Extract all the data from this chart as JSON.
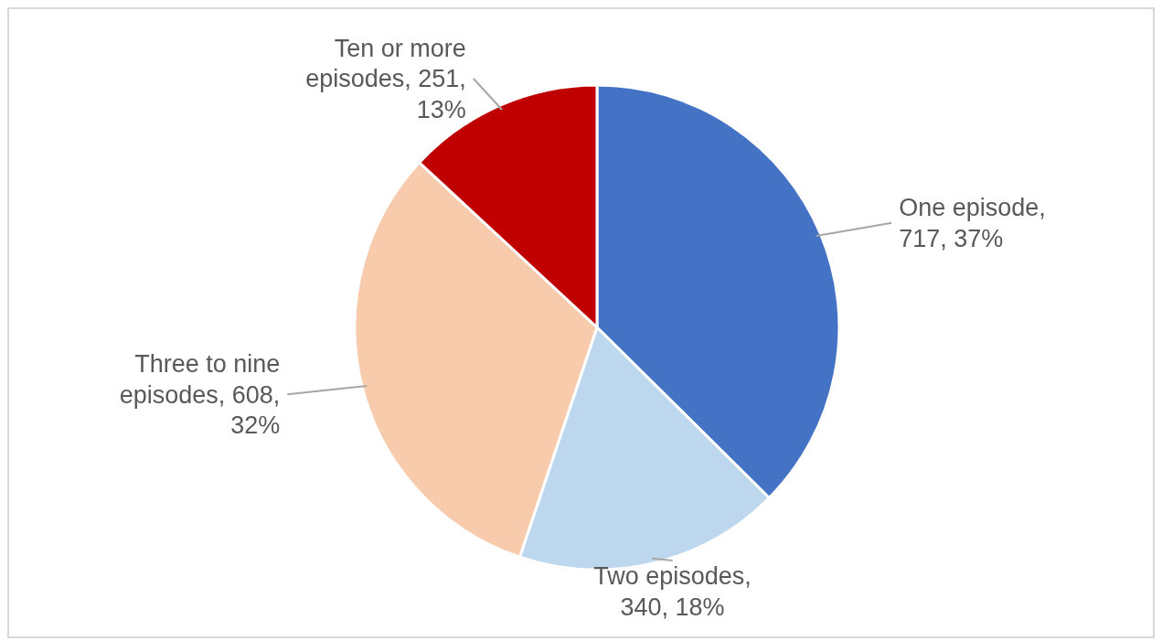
{
  "chart_data": {
    "type": "pie",
    "categories": [
      "One episode",
      "Two episodes",
      "Three to nine episodes",
      "Ten or more episodes"
    ],
    "values": [
      717,
      340,
      608,
      251
    ],
    "colors": [
      "#4472c4",
      "#bdd7ee",
      "#f8cbad",
      "#c00000"
    ],
    "value_labels": [
      ", 717, 37%",
      ", 340, 18%",
      ", 608, 32%",
      ", 251, 13%"
    ]
  }
}
